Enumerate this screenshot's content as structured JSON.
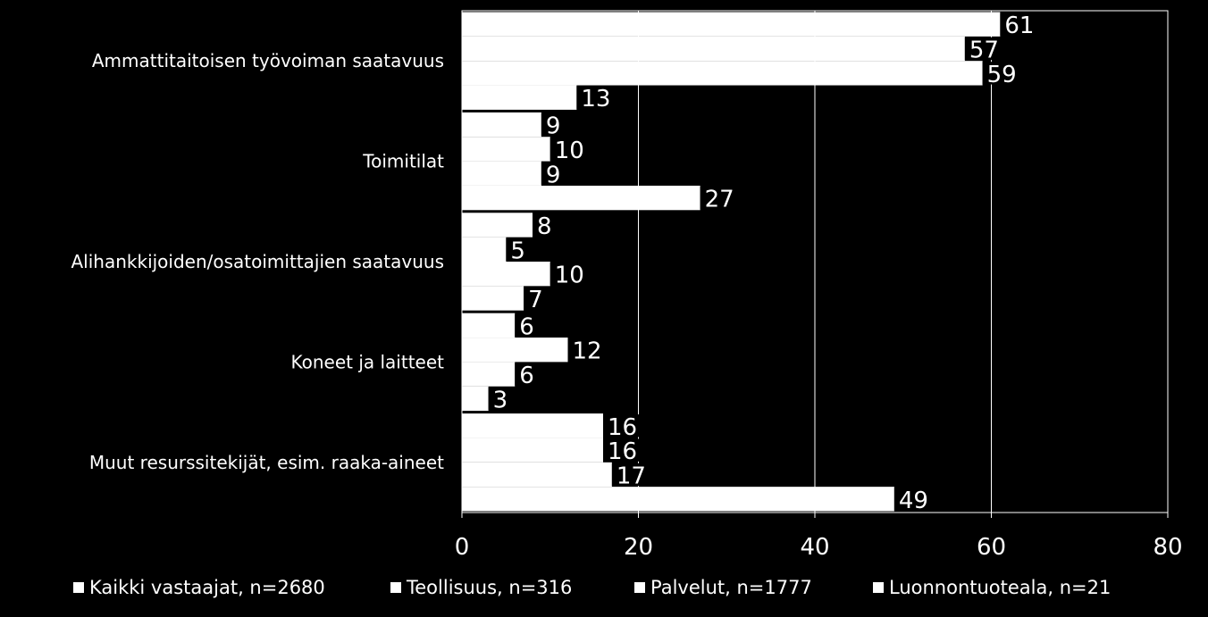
{
  "chart_data": {
    "type": "bar",
    "orientation": "horizontal",
    "categories": [
      "Ammattitaitoisen työvoiman saatavuus",
      "Toimitilat",
      "Alihankkijoiden/osatoimittajien saatavuus",
      "Koneet ja laitteet",
      "Muut resurssitekijät, esim. raaka-aineet"
    ],
    "series": [
      {
        "name": "Kaikki vastaajat, n=2680",
        "values": [
          61,
          9,
          8,
          6,
          16
        ]
      },
      {
        "name": "Teollisuus, n=316",
        "values": [
          57,
          10,
          5,
          12,
          16
        ]
      },
      {
        "name": "Palvelut, n=1777",
        "values": [
          59,
          9,
          10,
          6,
          17
        ]
      },
      {
        "name": "Luonnontuoteala, n=21",
        "values": [
          13,
          27,
          7,
          3,
          49
        ]
      }
    ],
    "xlim": [
      0,
      80
    ],
    "xticks": [
      "0",
      "20",
      "40",
      "60",
      "80"
    ],
    "grid": true,
    "legend": "bottom",
    "colors": {
      "background": "#000000",
      "bar": "#ffffff",
      "grid": "#ffffff",
      "text": "#ffffff"
    }
  }
}
